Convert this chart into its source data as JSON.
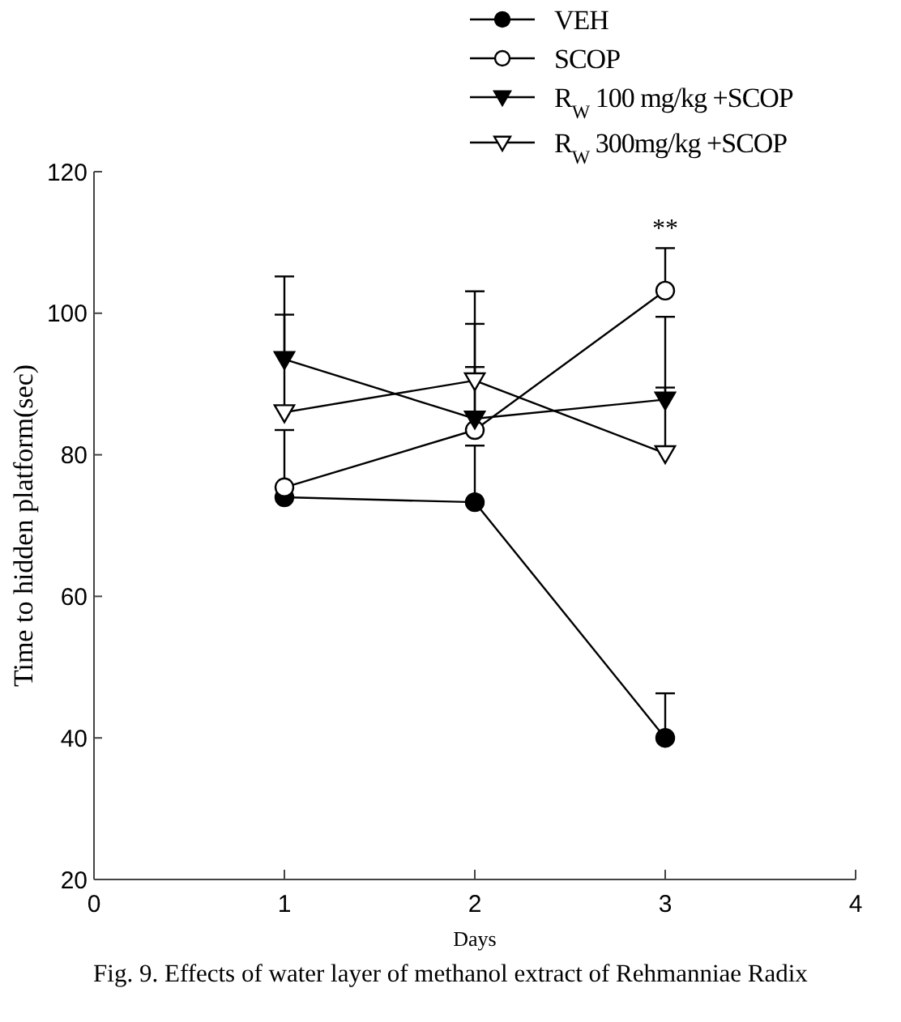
{
  "chart_data": {
    "type": "line",
    "title": "Fig. 9. Effects of water layer of methanol extract of Rehmanniae Radix",
    "xlabel": "Days",
    "ylabel": "Time to hidden platform(sec)",
    "x": [
      1,
      2,
      3
    ],
    "series": [
      {
        "name": "VEH",
        "color": "#000000",
        "marker": "circle",
        "values": [
          74,
          73.3,
          40
        ],
        "errors": [
          null,
          [
            73.3,
            81.3
          ],
          [
            40,
            46.3
          ]
        ]
      },
      {
        "name": "SCOP",
        "color": "#000000",
        "marker": "circle",
        "values": [
          75.4,
          83.5,
          103.2
        ],
        "errors": [
          [
            75.4,
            83.5
          ],
          [
            83.5,
            92.4
          ],
          [
            103.2,
            109.2
          ]
        ]
      },
      {
        "name": "R$_{W}$ 100 mg/kg +SCOP",
        "color": "#000000",
        "marker": "triangle",
        "values": [
          93.5,
          85.1,
          87.8
        ],
        "errors": [
          [
            93.5,
            105.2
          ],
          [
            85.1,
            98.5
          ],
          [
            87.8,
            99.5
          ]
        ]
      },
      {
        "name": "R$_{W}$ 300mg/kg +SCOP",
        "color": "#000000",
        "marker": "triangle",
        "values": [
          86,
          90.5,
          80.2
        ],
        "errors": [
          [
            86,
            99.8
          ],
          [
            90.5,
            103.1
          ],
          [
            80.2,
            89.5
          ]
        ]
      }
    ],
    "annotations": [
      "**"
    ],
    "xlim": [
      0,
      4
    ],
    "xticks": [
      0,
      1,
      2,
      3,
      4
    ],
    "ylim": [
      20,
      120
    ],
    "yticks": [
      20,
      40,
      60,
      80,
      100,
      120
    ],
    "grid": false,
    "legend": "top",
    "line_style": "solid"
  }
}
